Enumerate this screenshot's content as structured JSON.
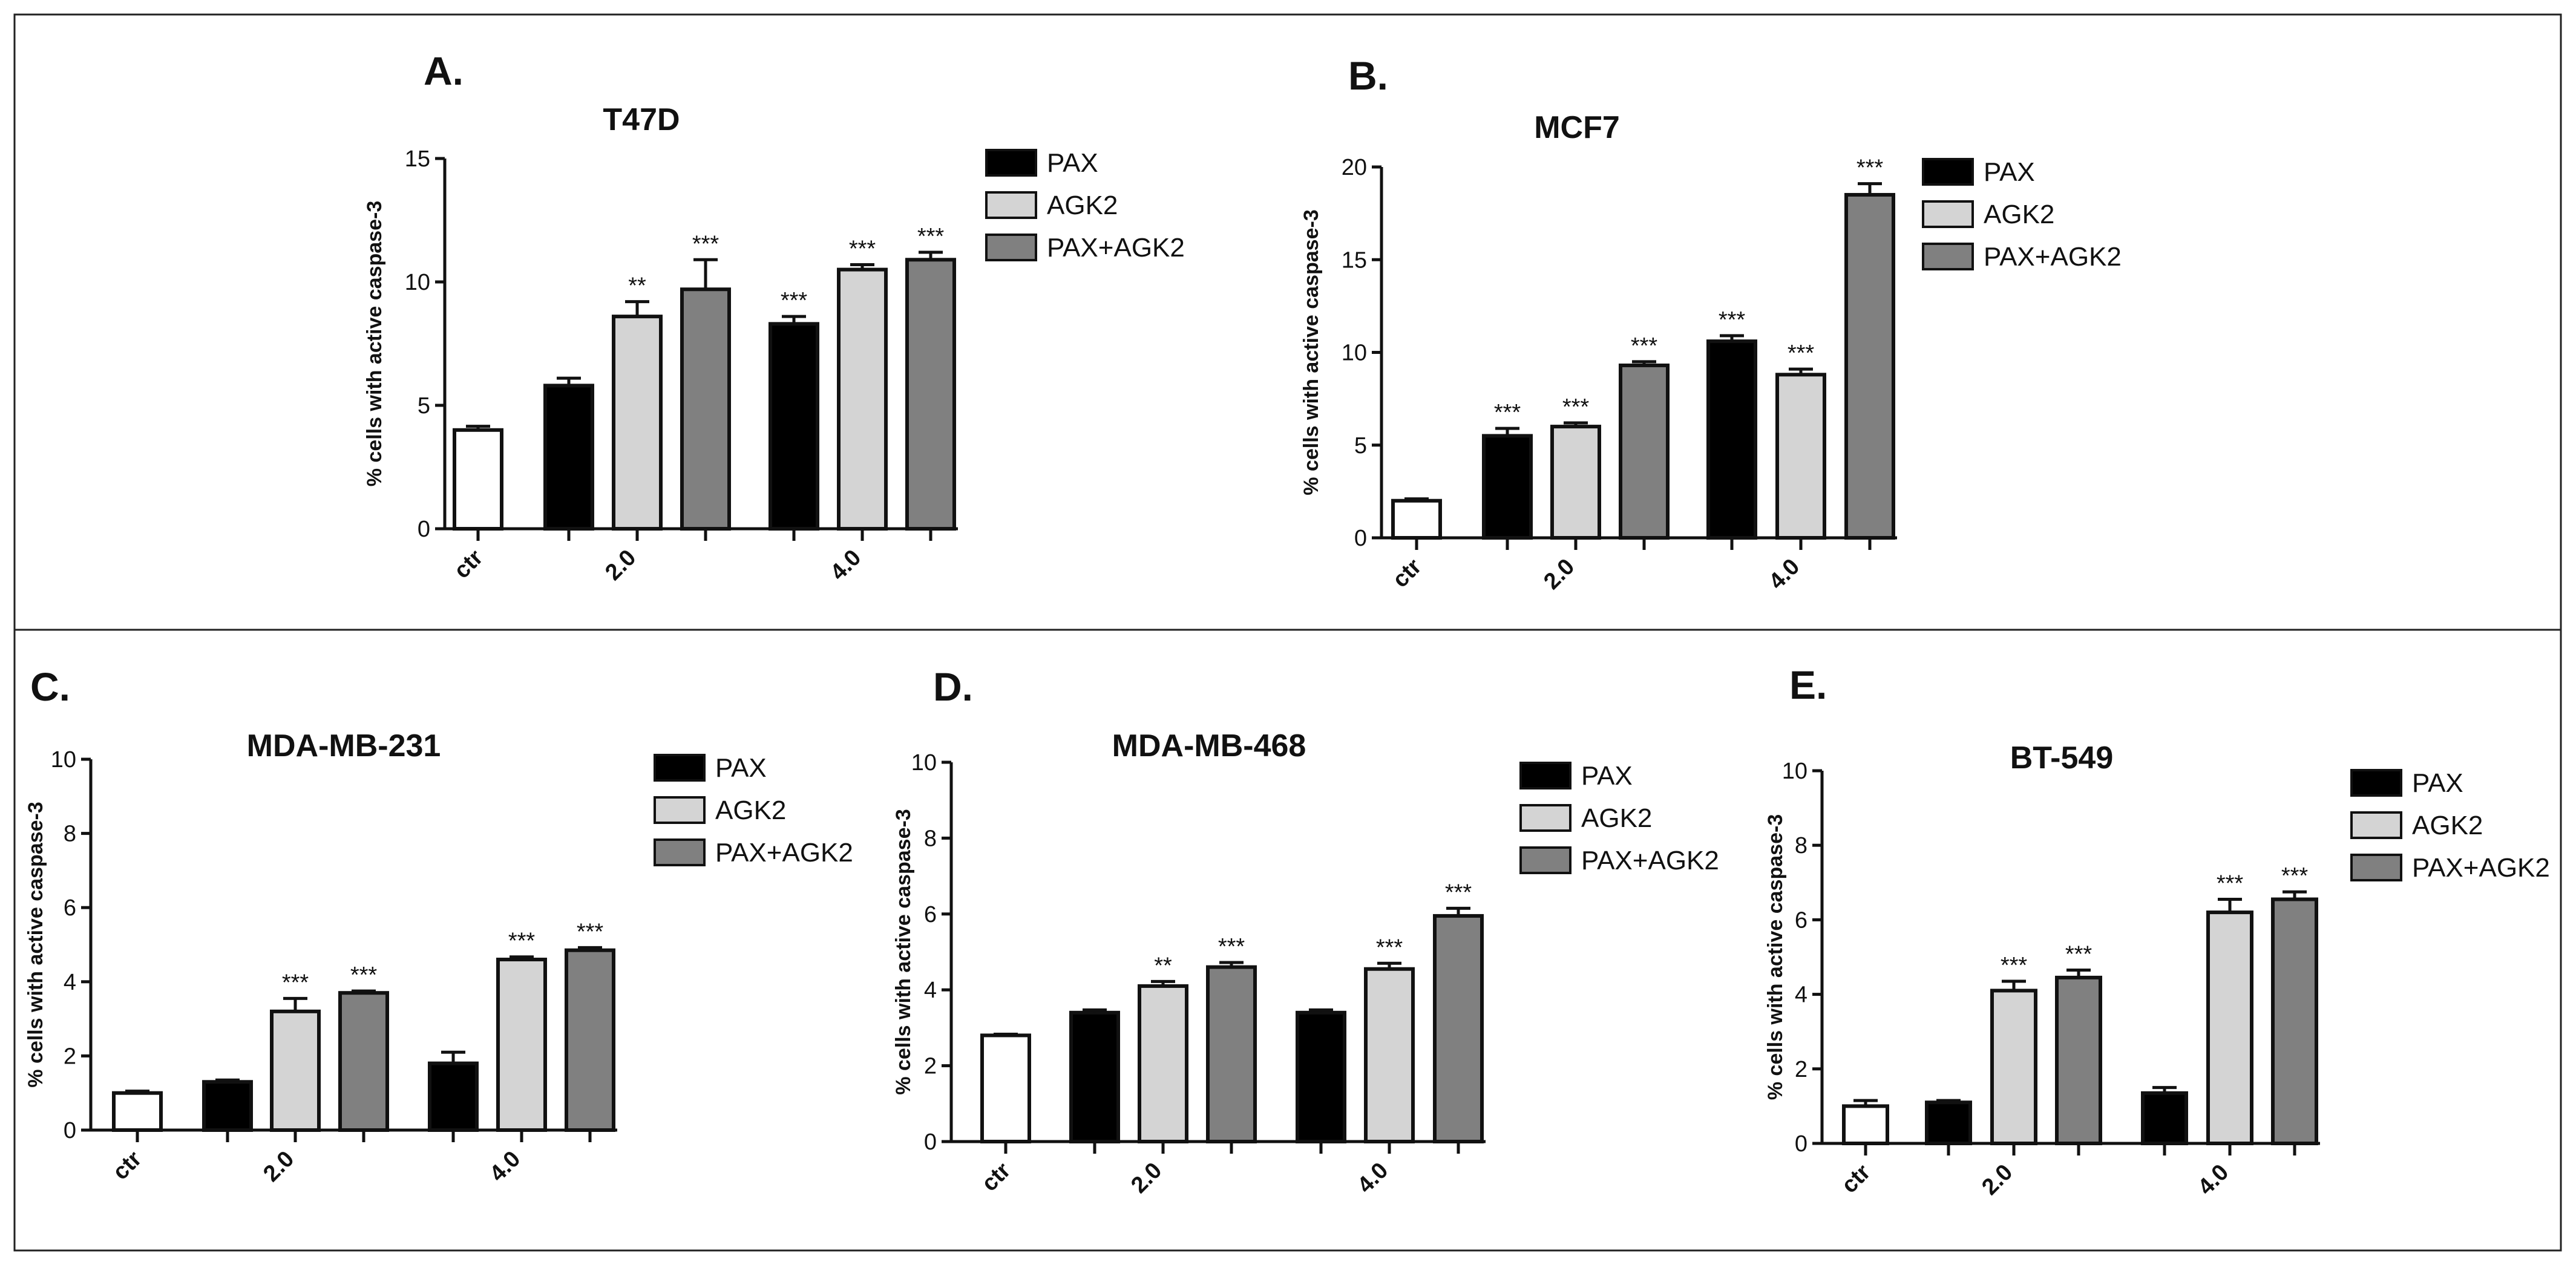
{
  "colors": {
    "ctr": "#ffffff",
    "PAX": "#000000",
    "AGK2": "#d4d4d4",
    "PAX+AGK2": "#808080"
  },
  "chart_data": [
    {
      "panel": "A.",
      "title": "T47D",
      "type": "bar",
      "ylabel": "% cells with active caspase-3",
      "ylim": [
        0,
        15
      ],
      "yticks": [
        0,
        5,
        10,
        15
      ],
      "xticks": [
        "ctr",
        "2.0",
        "4.0"
      ],
      "legend": [
        "PAX",
        "AGK2",
        "PAX+AGK2"
      ],
      "bars": [
        {
          "group": "ctr",
          "series": "ctr",
          "value": 4.0,
          "error": 0.15,
          "sig": ""
        },
        {
          "group": "2.0",
          "series": "PAX",
          "value": 5.8,
          "error": 0.3,
          "sig": ""
        },
        {
          "group": "2.0",
          "series": "AGK2",
          "value": 8.6,
          "error": 0.6,
          "sig": "**"
        },
        {
          "group": "2.0",
          "series": "PAX+AGK2",
          "value": 9.7,
          "error": 1.2,
          "sig": "***"
        },
        {
          "group": "4.0",
          "series": "PAX",
          "value": 8.3,
          "error": 0.3,
          "sig": "***"
        },
        {
          "group": "4.0",
          "series": "AGK2",
          "value": 10.5,
          "error": 0.2,
          "sig": "***"
        },
        {
          "group": "4.0",
          "series": "PAX+AGK2",
          "value": 10.9,
          "error": 0.3,
          "sig": "***"
        }
      ]
    },
    {
      "panel": "B.",
      "title": "MCF7",
      "type": "bar",
      "ylabel": "% cells with active caspase-3",
      "ylim": [
        0,
        20
      ],
      "yticks": [
        0,
        5,
        10,
        15,
        20
      ],
      "xticks": [
        "ctr",
        "2.0",
        "4.0"
      ],
      "legend": [
        "PAX",
        "AGK2",
        "PAX+AGK2"
      ],
      "bars": [
        {
          "group": "ctr",
          "series": "ctr",
          "value": 2.0,
          "error": 0.1,
          "sig": ""
        },
        {
          "group": "2.0",
          "series": "PAX",
          "value": 5.5,
          "error": 0.4,
          "sig": "***"
        },
        {
          "group": "2.0",
          "series": "AGK2",
          "value": 6.0,
          "error": 0.2,
          "sig": "***"
        },
        {
          "group": "2.0",
          "series": "PAX+AGK2",
          "value": 9.3,
          "error": 0.2,
          "sig": "***"
        },
        {
          "group": "4.0",
          "series": "PAX",
          "value": 10.6,
          "error": 0.3,
          "sig": "***"
        },
        {
          "group": "4.0",
          "series": "AGK2",
          "value": 8.8,
          "error": 0.3,
          "sig": "***"
        },
        {
          "group": "4.0",
          "series": "PAX+AGK2",
          "value": 18.5,
          "error": 0.6,
          "sig": "***"
        }
      ]
    },
    {
      "panel": "C.",
      "title": "MDA-MB-231",
      "type": "bar",
      "ylabel": "% cells with active caspase-3",
      "ylim": [
        0,
        10
      ],
      "yticks": [
        0,
        2,
        4,
        6,
        8,
        10
      ],
      "xticks": [
        "ctr",
        "2.0",
        "4.0"
      ],
      "legend": [
        "PAX",
        "AGK2",
        "PAX+AGK2"
      ],
      "bars": [
        {
          "group": "ctr",
          "series": "ctr",
          "value": 1.0,
          "error": 0.05,
          "sig": ""
        },
        {
          "group": "2.0",
          "series": "PAX",
          "value": 1.3,
          "error": 0.05,
          "sig": ""
        },
        {
          "group": "2.0",
          "series": "AGK2",
          "value": 3.2,
          "error": 0.35,
          "sig": "***"
        },
        {
          "group": "2.0",
          "series": "PAX+AGK2",
          "value": 3.7,
          "error": 0.05,
          "sig": "***"
        },
        {
          "group": "4.0",
          "series": "PAX",
          "value": 1.8,
          "error": 0.3,
          "sig": ""
        },
        {
          "group": "4.0",
          "series": "AGK2",
          "value": 4.6,
          "error": 0.07,
          "sig": "***"
        },
        {
          "group": "4.0",
          "series": "PAX+AGK2",
          "value": 4.85,
          "error": 0.07,
          "sig": "***"
        }
      ]
    },
    {
      "panel": "D.",
      "title": "MDA-MB-468",
      "type": "bar",
      "ylabel": "% cells with active caspase-3",
      "ylim": [
        0,
        10
      ],
      "yticks": [
        0,
        2,
        4,
        6,
        8,
        10
      ],
      "xticks": [
        "ctr",
        "2.0",
        "4.0"
      ],
      "legend": [
        "PAX",
        "AGK2",
        "PAX+AGK2"
      ],
      "bars": [
        {
          "group": "ctr",
          "series": "ctr",
          "value": 2.8,
          "error": 0.03,
          "sig": ""
        },
        {
          "group": "2.0",
          "series": "PAX",
          "value": 3.4,
          "error": 0.07,
          "sig": ""
        },
        {
          "group": "2.0",
          "series": "AGK2",
          "value": 4.1,
          "error": 0.12,
          "sig": "**"
        },
        {
          "group": "2.0",
          "series": "PAX+AGK2",
          "value": 4.6,
          "error": 0.12,
          "sig": "***"
        },
        {
          "group": "4.0",
          "series": "PAX",
          "value": 3.4,
          "error": 0.07,
          "sig": ""
        },
        {
          "group": "4.0",
          "series": "AGK2",
          "value": 4.55,
          "error": 0.15,
          "sig": "***"
        },
        {
          "group": "4.0",
          "series": "PAX+AGK2",
          "value": 5.95,
          "error": 0.2,
          "sig": "***"
        }
      ]
    },
    {
      "panel": "E.",
      "title": "BT-549",
      "type": "bar",
      "ylabel": "% cells with active caspase-3",
      "ylim": [
        0,
        10
      ],
      "yticks": [
        0,
        2,
        4,
        6,
        8,
        10
      ],
      "xticks": [
        "ctr",
        "2.0",
        "4.0"
      ],
      "legend": [
        "PAX",
        "AGK2",
        "PAX+AGK2"
      ],
      "bars": [
        {
          "group": "ctr",
          "series": "ctr",
          "value": 1.0,
          "error": 0.15,
          "sig": ""
        },
        {
          "group": "2.0",
          "series": "PAX",
          "value": 1.1,
          "error": 0.05,
          "sig": ""
        },
        {
          "group": "2.0",
          "series": "AGK2",
          "value": 4.1,
          "error": 0.25,
          "sig": "***"
        },
        {
          "group": "2.0",
          "series": "PAX+AGK2",
          "value": 4.45,
          "error": 0.2,
          "sig": "***"
        },
        {
          "group": "4.0",
          "series": "PAX",
          "value": 1.35,
          "error": 0.15,
          "sig": ""
        },
        {
          "group": "4.0",
          "series": "AGK2",
          "value": 6.2,
          "error": 0.35,
          "sig": "***"
        },
        {
          "group": "4.0",
          "series": "PAX+AGK2",
          "value": 6.55,
          "error": 0.2,
          "sig": "***"
        }
      ]
    }
  ]
}
